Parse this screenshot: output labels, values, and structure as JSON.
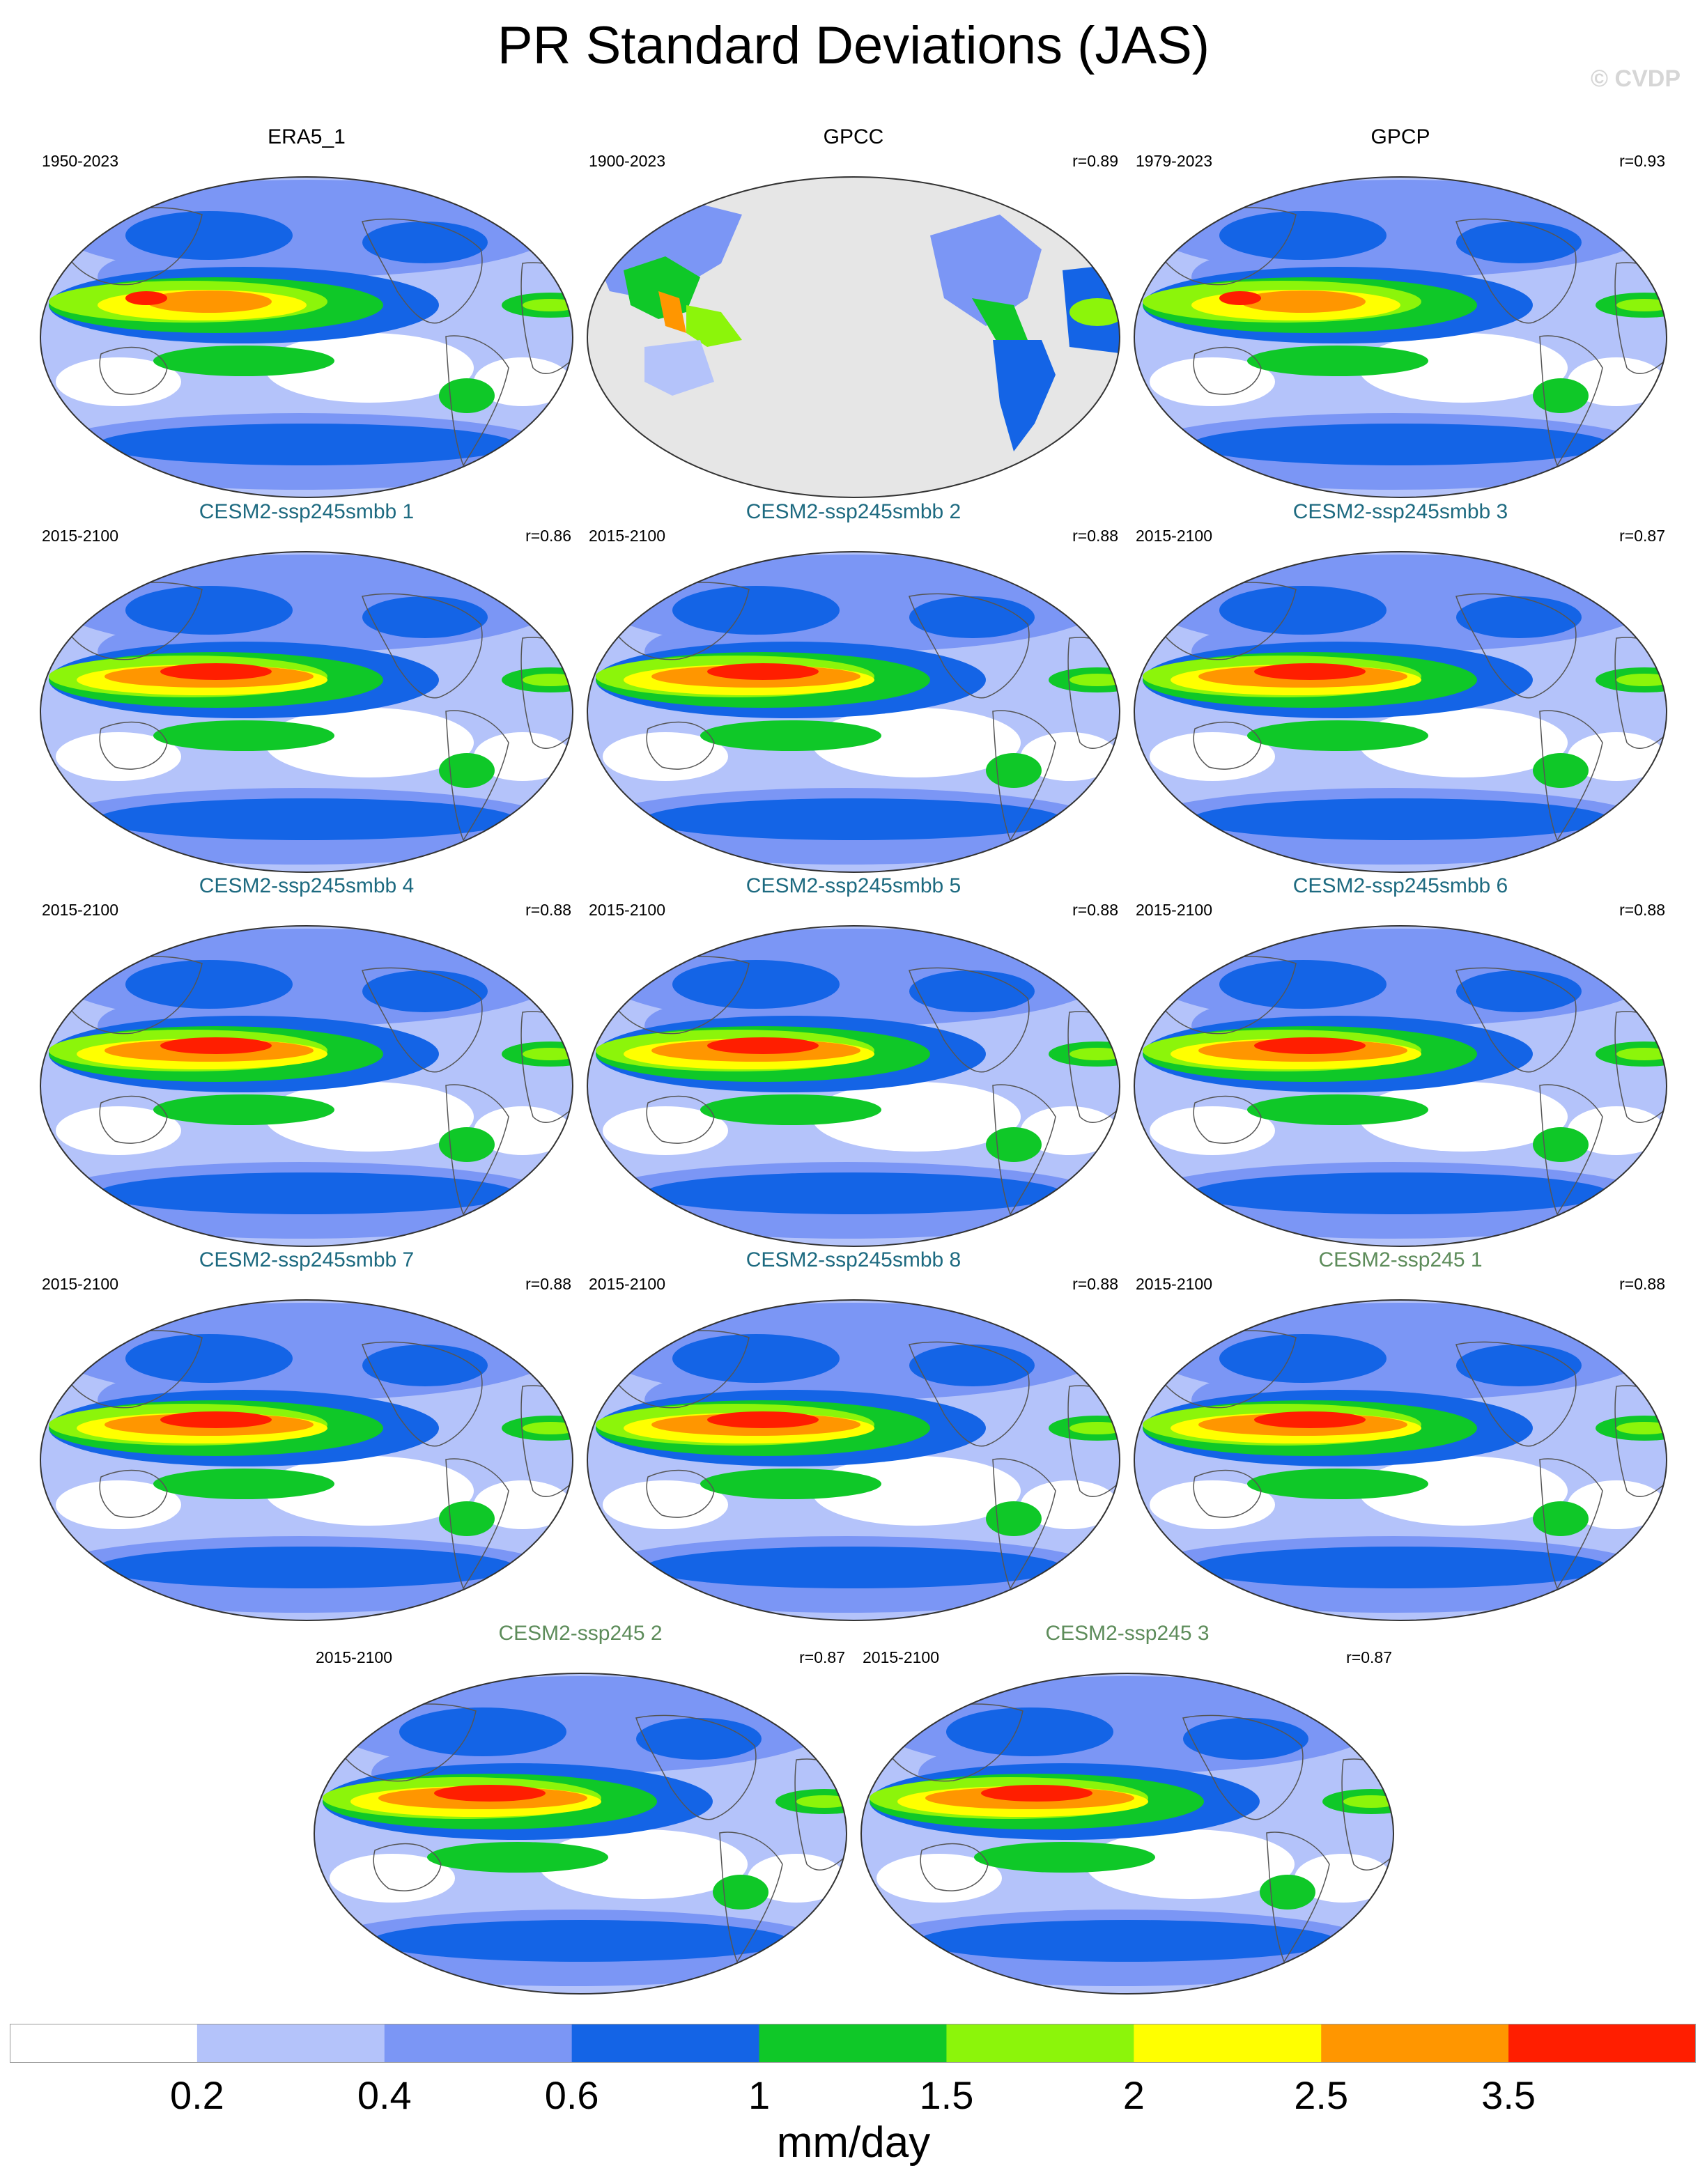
{
  "title": "PR Standard Deviations (JAS)",
  "watermark": "© CVDP",
  "panels": [
    {
      "name": "ERA5_1",
      "period": "1950-2023",
      "r": "",
      "group": "obs",
      "variant": "full"
    },
    {
      "name": "GPCC",
      "period": "1900-2023",
      "r": "r=0.89",
      "group": "obs",
      "variant": "land"
    },
    {
      "name": "GPCP",
      "period": "1979-2023",
      "r": "r=0.93",
      "group": "obs",
      "variant": "full"
    },
    {
      "name": "CESM2-ssp245smbb 1",
      "period": "2015-2100",
      "r": "r=0.86",
      "group": "smbb",
      "variant": "model"
    },
    {
      "name": "CESM2-ssp245smbb 2",
      "period": "2015-2100",
      "r": "r=0.88",
      "group": "smbb",
      "variant": "model"
    },
    {
      "name": "CESM2-ssp245smbb 3",
      "period": "2015-2100",
      "r": "r=0.87",
      "group": "smbb",
      "variant": "model"
    },
    {
      "name": "CESM2-ssp245smbb 4",
      "period": "2015-2100",
      "r": "r=0.88",
      "group": "smbb",
      "variant": "model"
    },
    {
      "name": "CESM2-ssp245smbb 5",
      "period": "2015-2100",
      "r": "r=0.88",
      "group": "smbb",
      "variant": "model"
    },
    {
      "name": "CESM2-ssp245smbb 6",
      "period": "2015-2100",
      "r": "r=0.88",
      "group": "smbb",
      "variant": "model"
    },
    {
      "name": "CESM2-ssp245smbb 7",
      "period": "2015-2100",
      "r": "r=0.88",
      "group": "smbb",
      "variant": "model"
    },
    {
      "name": "CESM2-ssp245smbb 8",
      "period": "2015-2100",
      "r": "r=0.88",
      "group": "smbb",
      "variant": "model"
    },
    {
      "name": "CESM2-ssp245 1",
      "period": "2015-2100",
      "r": "r=0.88",
      "group": "ssp",
      "variant": "model"
    },
    {
      "name": "CESM2-ssp245 2",
      "period": "2015-2100",
      "r": "r=0.87",
      "group": "ssp",
      "variant": "model"
    },
    {
      "name": "CESM2-ssp245 3",
      "period": "2015-2100",
      "r": "r=0.87",
      "group": "ssp",
      "variant": "model"
    }
  ],
  "colorbar": {
    "colors": [
      "#ffffff",
      "#b4c3fa",
      "#7b96f5",
      "#1464e6",
      "#0fc828",
      "#8cf50a",
      "#ffff00",
      "#ff9600",
      "#ff1e00"
    ],
    "labels": [
      "0.2",
      "0.4",
      "0.6",
      "1",
      "1.5",
      "2",
      "2.5",
      "3.5"
    ],
    "units": "mm/day"
  },
  "map_colors": {
    "missing": "#e6e6e6",
    "coast": "#555555",
    "outline": "#333333"
  }
}
